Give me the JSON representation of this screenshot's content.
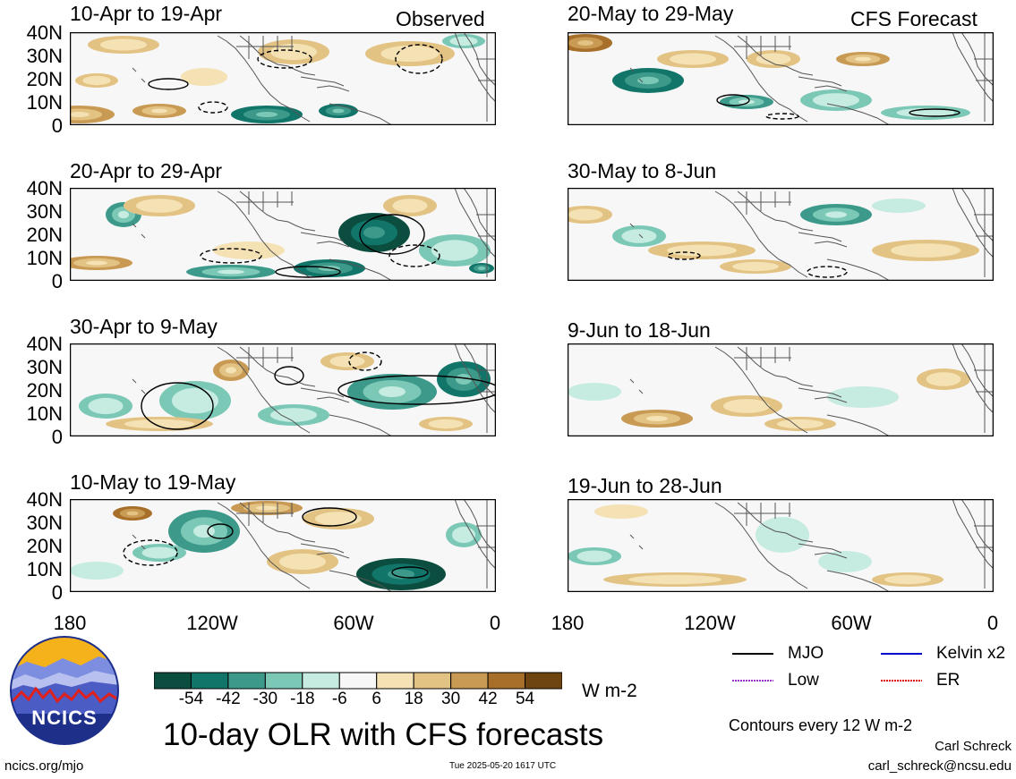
{
  "header": {
    "observed_label": "Observed",
    "forecast_label": "CFS Forecast"
  },
  "panels": {
    "observed": [
      {
        "title": "10-Apr to 19-Apr"
      },
      {
        "title": "20-Apr to 29-Apr"
      },
      {
        "title": "30-Apr to 9-May"
      },
      {
        "title": "10-May to 19-May"
      }
    ],
    "forecast": [
      {
        "title": "20-May to 29-May"
      },
      {
        "title": "30-May to 8-Jun"
      },
      {
        "title": "9-Jun to 18-Jun"
      },
      {
        "title": "19-Jun to 28-Jun"
      }
    ]
  },
  "axes": {
    "lat_labels": [
      "40N",
      "30N",
      "20N",
      "10N",
      "0"
    ],
    "lon_labels": [
      "180",
      "120W",
      "60W",
      "0"
    ]
  },
  "colorbar": {
    "ticks": [
      "-54",
      "-42",
      "-30",
      "-18",
      "-6",
      "6",
      "18",
      "30",
      "42",
      "54"
    ],
    "unit": "W m-2",
    "colors": [
      "#0b4d3e",
      "#12756a",
      "#3d9a8b",
      "#7cc8b6",
      "#c6ece2",
      "#f7f7f7",
      "#f4e1b4",
      "#e3c384",
      "#c99a54",
      "#a76f2a",
      "#6e4410"
    ]
  },
  "legend": {
    "mjo": "MJO",
    "kelvin": "Kelvin x2",
    "low": "Low",
    "er": "ER",
    "mjo_color": "#000000",
    "kelvin_color": "#0000cc",
    "low_color": "#9933cc",
    "er_color": "#dd0000"
  },
  "footer": {
    "main_title": "10-day OLR with CFS forecasts",
    "contours_note": "Contours every 12 W m-2",
    "author": "Carl Schreck",
    "email": "carl_schreck@ncsu.edu",
    "url": "ncics.org/mjo",
    "timestamp": "Tue 2025-05-20 1617 UTC",
    "logo_text": "NCICS"
  }
}
